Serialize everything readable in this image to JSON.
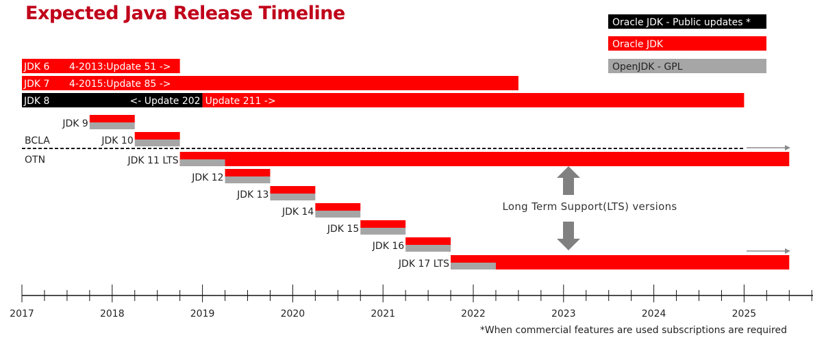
{
  "title": "Expected Java Release Timeline",
  "footnote": "*When commercial features are used subscriptions are required",
  "colors": {
    "oracle_public": "#000000",
    "oracle_jdk": "#ff0000",
    "openjdk": "#a6a6a6",
    "text": "#222222"
  },
  "chart_data": {
    "type": "timeline",
    "title": "Expected Java Release Timeline",
    "x_ticks": [
      "2017",
      "2018",
      "2019",
      "2020",
      "2021",
      "2022",
      "2023",
      "2024",
      "2025"
    ],
    "x_range": [
      2017.0,
      2025.75
    ],
    "legend": [
      {
        "name": "Oracle JDK - Public updates *",
        "color": "#000000"
      },
      {
        "name": "Oracle JDK",
        "color": "#ff0000"
      },
      {
        "name": "OpenJDK - GPL",
        "color": "#a6a6a6"
      }
    ],
    "legend_position": "top-right",
    "license_divider": {
      "above": "BCLA",
      "below": "OTN",
      "at_date": 2018.75
    },
    "lts_annotation": "Long Term Support(LTS) versions",
    "releases": [
      {
        "name": "JDK 6",
        "label_inside": true,
        "segments": [
          {
            "start": 2017.0,
            "end": 2018.75,
            "kind": "oracle_jdk"
          }
        ],
        "note": "4-2013:Update 51 ->"
      },
      {
        "name": "JDK 7",
        "label_inside": true,
        "segments": [
          {
            "start": 2017.0,
            "end": 2022.5,
            "kind": "oracle_jdk"
          }
        ],
        "note": "4-2015:Update 85 ->"
      },
      {
        "name": "JDK 8",
        "label_inside": true,
        "segments": [
          {
            "start": 2017.0,
            "end": 2019.0,
            "kind": "oracle_public"
          },
          {
            "start": 2019.0,
            "end": 2025.0,
            "kind": "oracle_jdk"
          }
        ],
        "notes": [
          "<- Update 202",
          "Update 211 ->"
        ]
      },
      {
        "name": "JDK 9",
        "segments": [
          {
            "start": 2017.75,
            "end": 2018.25,
            "kind": "oracle_jdk"
          },
          {
            "start": 2017.75,
            "end": 2018.25,
            "kind": "openjdk"
          }
        ]
      },
      {
        "name": "JDK 10",
        "segments": [
          {
            "start": 2018.25,
            "end": 2018.75,
            "kind": "oracle_jdk"
          },
          {
            "start": 2018.25,
            "end": 2018.75,
            "kind": "openjdk"
          }
        ]
      },
      {
        "name": "JDK 11 LTS",
        "lts": true,
        "segments": [
          {
            "start": 2018.75,
            "end": 2025.5,
            "kind": "oracle_jdk"
          },
          {
            "start": 2018.75,
            "end": 2019.25,
            "kind": "openjdk"
          }
        ]
      },
      {
        "name": "JDK 12",
        "segments": [
          {
            "start": 2019.25,
            "end": 2019.75,
            "kind": "oracle_jdk"
          },
          {
            "start": 2019.25,
            "end": 2019.75,
            "kind": "openjdk"
          }
        ]
      },
      {
        "name": "JDK 13",
        "segments": [
          {
            "start": 2019.75,
            "end": 2020.25,
            "kind": "oracle_jdk"
          },
          {
            "start": 2019.75,
            "end": 2020.25,
            "kind": "openjdk"
          }
        ]
      },
      {
        "name": "JDK 14",
        "segments": [
          {
            "start": 2020.25,
            "end": 2020.75,
            "kind": "oracle_jdk"
          },
          {
            "start": 2020.25,
            "end": 2020.75,
            "kind": "openjdk"
          }
        ]
      },
      {
        "name": "JDK 15",
        "segments": [
          {
            "start": 2020.75,
            "end": 2021.25,
            "kind": "oracle_jdk"
          },
          {
            "start": 2020.75,
            "end": 2021.25,
            "kind": "openjdk"
          }
        ]
      },
      {
        "name": "JDK 16",
        "segments": [
          {
            "start": 2021.25,
            "end": 2021.75,
            "kind": "oracle_jdk"
          },
          {
            "start": 2021.25,
            "end": 2021.75,
            "kind": "openjdk"
          }
        ]
      },
      {
        "name": "JDK 17 LTS",
        "lts": true,
        "segments": [
          {
            "start": 2021.75,
            "end": 2025.5,
            "kind": "oracle_jdk"
          },
          {
            "start": 2021.75,
            "end": 2022.25,
            "kind": "openjdk"
          }
        ]
      }
    ]
  }
}
